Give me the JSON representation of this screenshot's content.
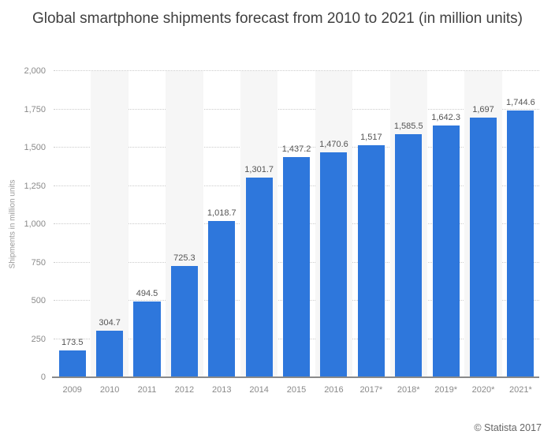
{
  "footer": {
    "copyright": "© Statista 2017"
  },
  "colors": {
    "bar": "#2e77dc",
    "stripe": "#f6f6f6",
    "grid": "#cbcbcb",
    "axis_line": "#8a8a8a",
    "axis_text": "#8a8a8a",
    "value_text": "#545454",
    "title_text": "#404040",
    "ytitle_text": "#999999",
    "footer_text": "#666666"
  },
  "chart_data": {
    "type": "bar",
    "title": "Global smartphone shipments forecast from 2010 to 2021 (in million units)",
    "xlabel": "",
    "ylabel": "Shipments in million units",
    "ylim": [
      0,
      2000
    ],
    "grid": "horizontal-dotted",
    "legend": "none",
    "column_stripes": "alternating, even categories shaded",
    "categories": [
      "2009",
      "2010",
      "2011",
      "2012",
      "2013",
      "2014",
      "2015",
      "2016",
      "2017*",
      "2018*",
      "2019*",
      "2020*",
      "2021*"
    ],
    "values": [
      173.5,
      304.7,
      494.5,
      725.3,
      1018.7,
      1301.7,
      1437.2,
      1470.6,
      1517,
      1585.5,
      1642.3,
      1697,
      1744.6
    ],
    "value_labels": [
      "173.5",
      "304.7",
      "494.5",
      "725.3",
      "1,018.7",
      "1,301.7",
      "1,437.2",
      "1,470.6",
      "1,517",
      "1,585.5",
      "1,642.3",
      "1,697",
      "1,744.6"
    ],
    "yticks": [
      "0",
      "250",
      "500",
      "750",
      "1,000",
      "1,250",
      "1,500",
      "1,750",
      "2,000"
    ],
    "ytick_values": [
      0,
      250,
      500,
      750,
      1000,
      1250,
      1500,
      1750,
      2000
    ]
  }
}
